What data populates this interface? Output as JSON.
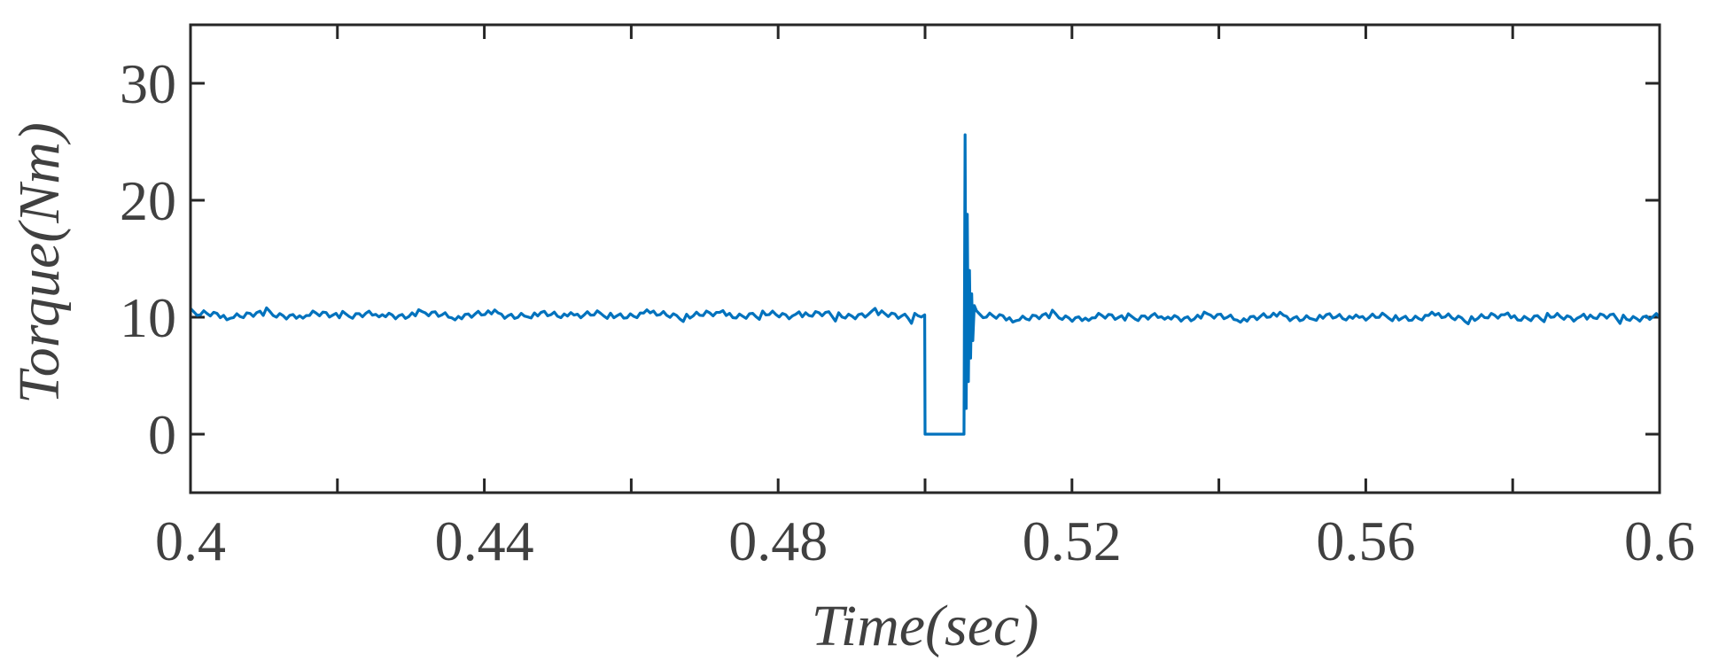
{
  "chart_data": {
    "type": "line",
    "title": "",
    "xlabel": "Time(sec)",
    "ylabel": "Torque(Nm)",
    "xlim": [
      0.4,
      0.6
    ],
    "ylim": [
      -5,
      35
    ],
    "x_ticks": [
      0.4,
      0.42,
      0.44,
      0.46,
      0.48,
      0.5,
      0.52,
      0.54,
      0.56,
      0.58,
      0.6
    ],
    "x_tick_labels": [
      "0.4",
      "",
      "0.44",
      "",
      "0.48",
      "",
      "0.52",
      "",
      "0.56",
      "",
      "0.6"
    ],
    "y_ticks": [
      0,
      10,
      20,
      30
    ],
    "y_tick_labels": [
      "0",
      "10",
      "20",
      "30"
    ],
    "grid": false,
    "legend": "none",
    "series_color": "#0072BD",
    "series": [
      {
        "x": [
          0.4,
          0.49995,
          0.5,
          0.5053,
          0.50545,
          0.5056,
          0.50575,
          0.5059,
          0.50605,
          0.5062,
          0.50635,
          0.5065,
          0.5067,
          0.507,
          0.6
        ],
        "y": [
          10.2,
          10.2,
          0,
          0,
          25.6,
          2.2,
          18.8,
          4.5,
          14.0,
          6.5,
          12.0,
          8.0,
          11.0,
          10.0,
          10.0
        ],
        "ripple": 0.5
      }
    ]
  }
}
